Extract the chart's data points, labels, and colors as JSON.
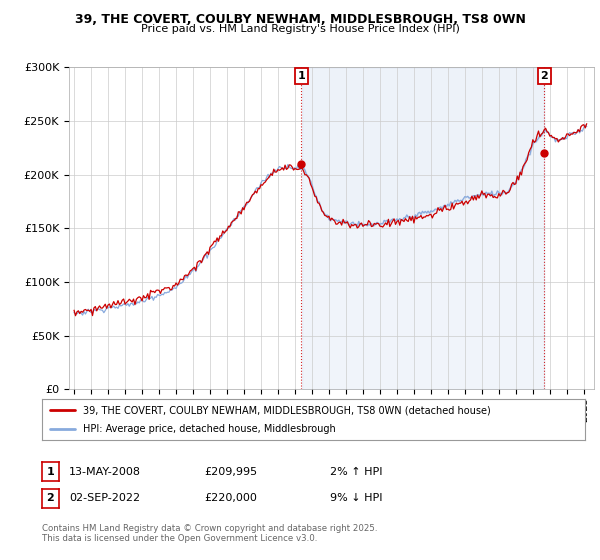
{
  "title": "39, THE COVERT, COULBY NEWHAM, MIDDLESBROUGH, TS8 0WN",
  "subtitle": "Price paid vs. HM Land Registry's House Price Index (HPI)",
  "legend_line1": "39, THE COVERT, COULBY NEWHAM, MIDDLESBROUGH, TS8 0WN (detached house)",
  "legend_line2": "HPI: Average price, detached house, Middlesbrough",
  "annotation1_label": "1",
  "annotation1_date": "13-MAY-2008",
  "annotation1_price": "£209,995",
  "annotation1_hpi": "2% ↑ HPI",
  "annotation2_label": "2",
  "annotation2_date": "02-SEP-2022",
  "annotation2_price": "£220,000",
  "annotation2_hpi": "9% ↓ HPI",
  "footer": "Contains HM Land Registry data © Crown copyright and database right 2025.\nThis data is licensed under the Open Government Licence v3.0.",
  "red_color": "#cc0000",
  "blue_color": "#88aadd",
  "fill_color": "#ddeeff",
  "annotation_color": "#cc0000",
  "grid_color": "#cccccc",
  "background_color": "#ffffff",
  "ylim": [
    0,
    300000
  ],
  "yticks": [
    0,
    50000,
    100000,
    150000,
    200000,
    250000,
    300000
  ],
  "ytick_labels": [
    "£0",
    "£50K",
    "£100K",
    "£150K",
    "£200K",
    "£250K",
    "£300K"
  ],
  "sale1_t": 2008.375,
  "sale1_p": 209995,
  "sale2_t": 2022.667,
  "sale2_p": 220000
}
